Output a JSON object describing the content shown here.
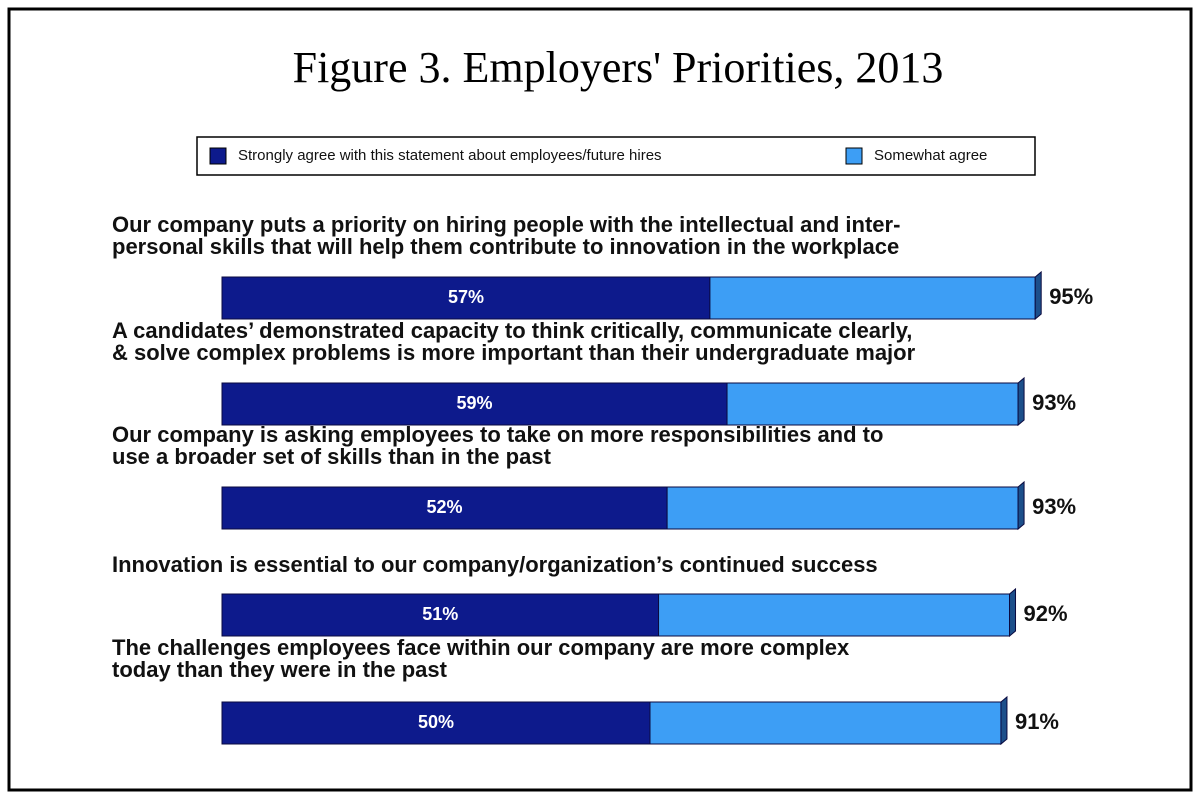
{
  "chart_data": {
    "type": "stacked-bar-horizontal",
    "title": "Figure 3.  Employers' Priorities, 2013",
    "categories": [
      [
        "Our company puts a priority on hiring people with the intellectual and inter-",
        "personal skills that will help them contribute to innovation in the workplace"
      ],
      [
        "A candidates’ demonstrated capacity to think critically, communicate clearly,",
        "& solve complex problems is more important than their undergraduate major"
      ],
      [
        "Our company is asking employees to take on more responsibilities and to",
        "use a broader set of skills than in the past"
      ],
      [
        "Innovation is essential to our company/organization’s continued success"
      ],
      [
        "The challenges employees face within our company are more complex",
        "today than they were in the past"
      ]
    ],
    "series": [
      {
        "name": "Strongly agree with this statement about employees/future hires",
        "color": "#0d1a8c",
        "values": [
          57,
          59,
          52,
          51,
          50
        ],
        "value_labels": [
          "57%",
          "59%",
          "52%",
          "51%",
          "50%"
        ]
      },
      {
        "name": "Somewhat agree",
        "color": "#3d9ef5",
        "values": [
          38,
          34,
          41,
          41,
          41
        ]
      }
    ],
    "totals": [
      95,
      93,
      93,
      92,
      91
    ],
    "total_labels": [
      "95%",
      "93%",
      "93%",
      "92%",
      "91%"
    ]
  }
}
